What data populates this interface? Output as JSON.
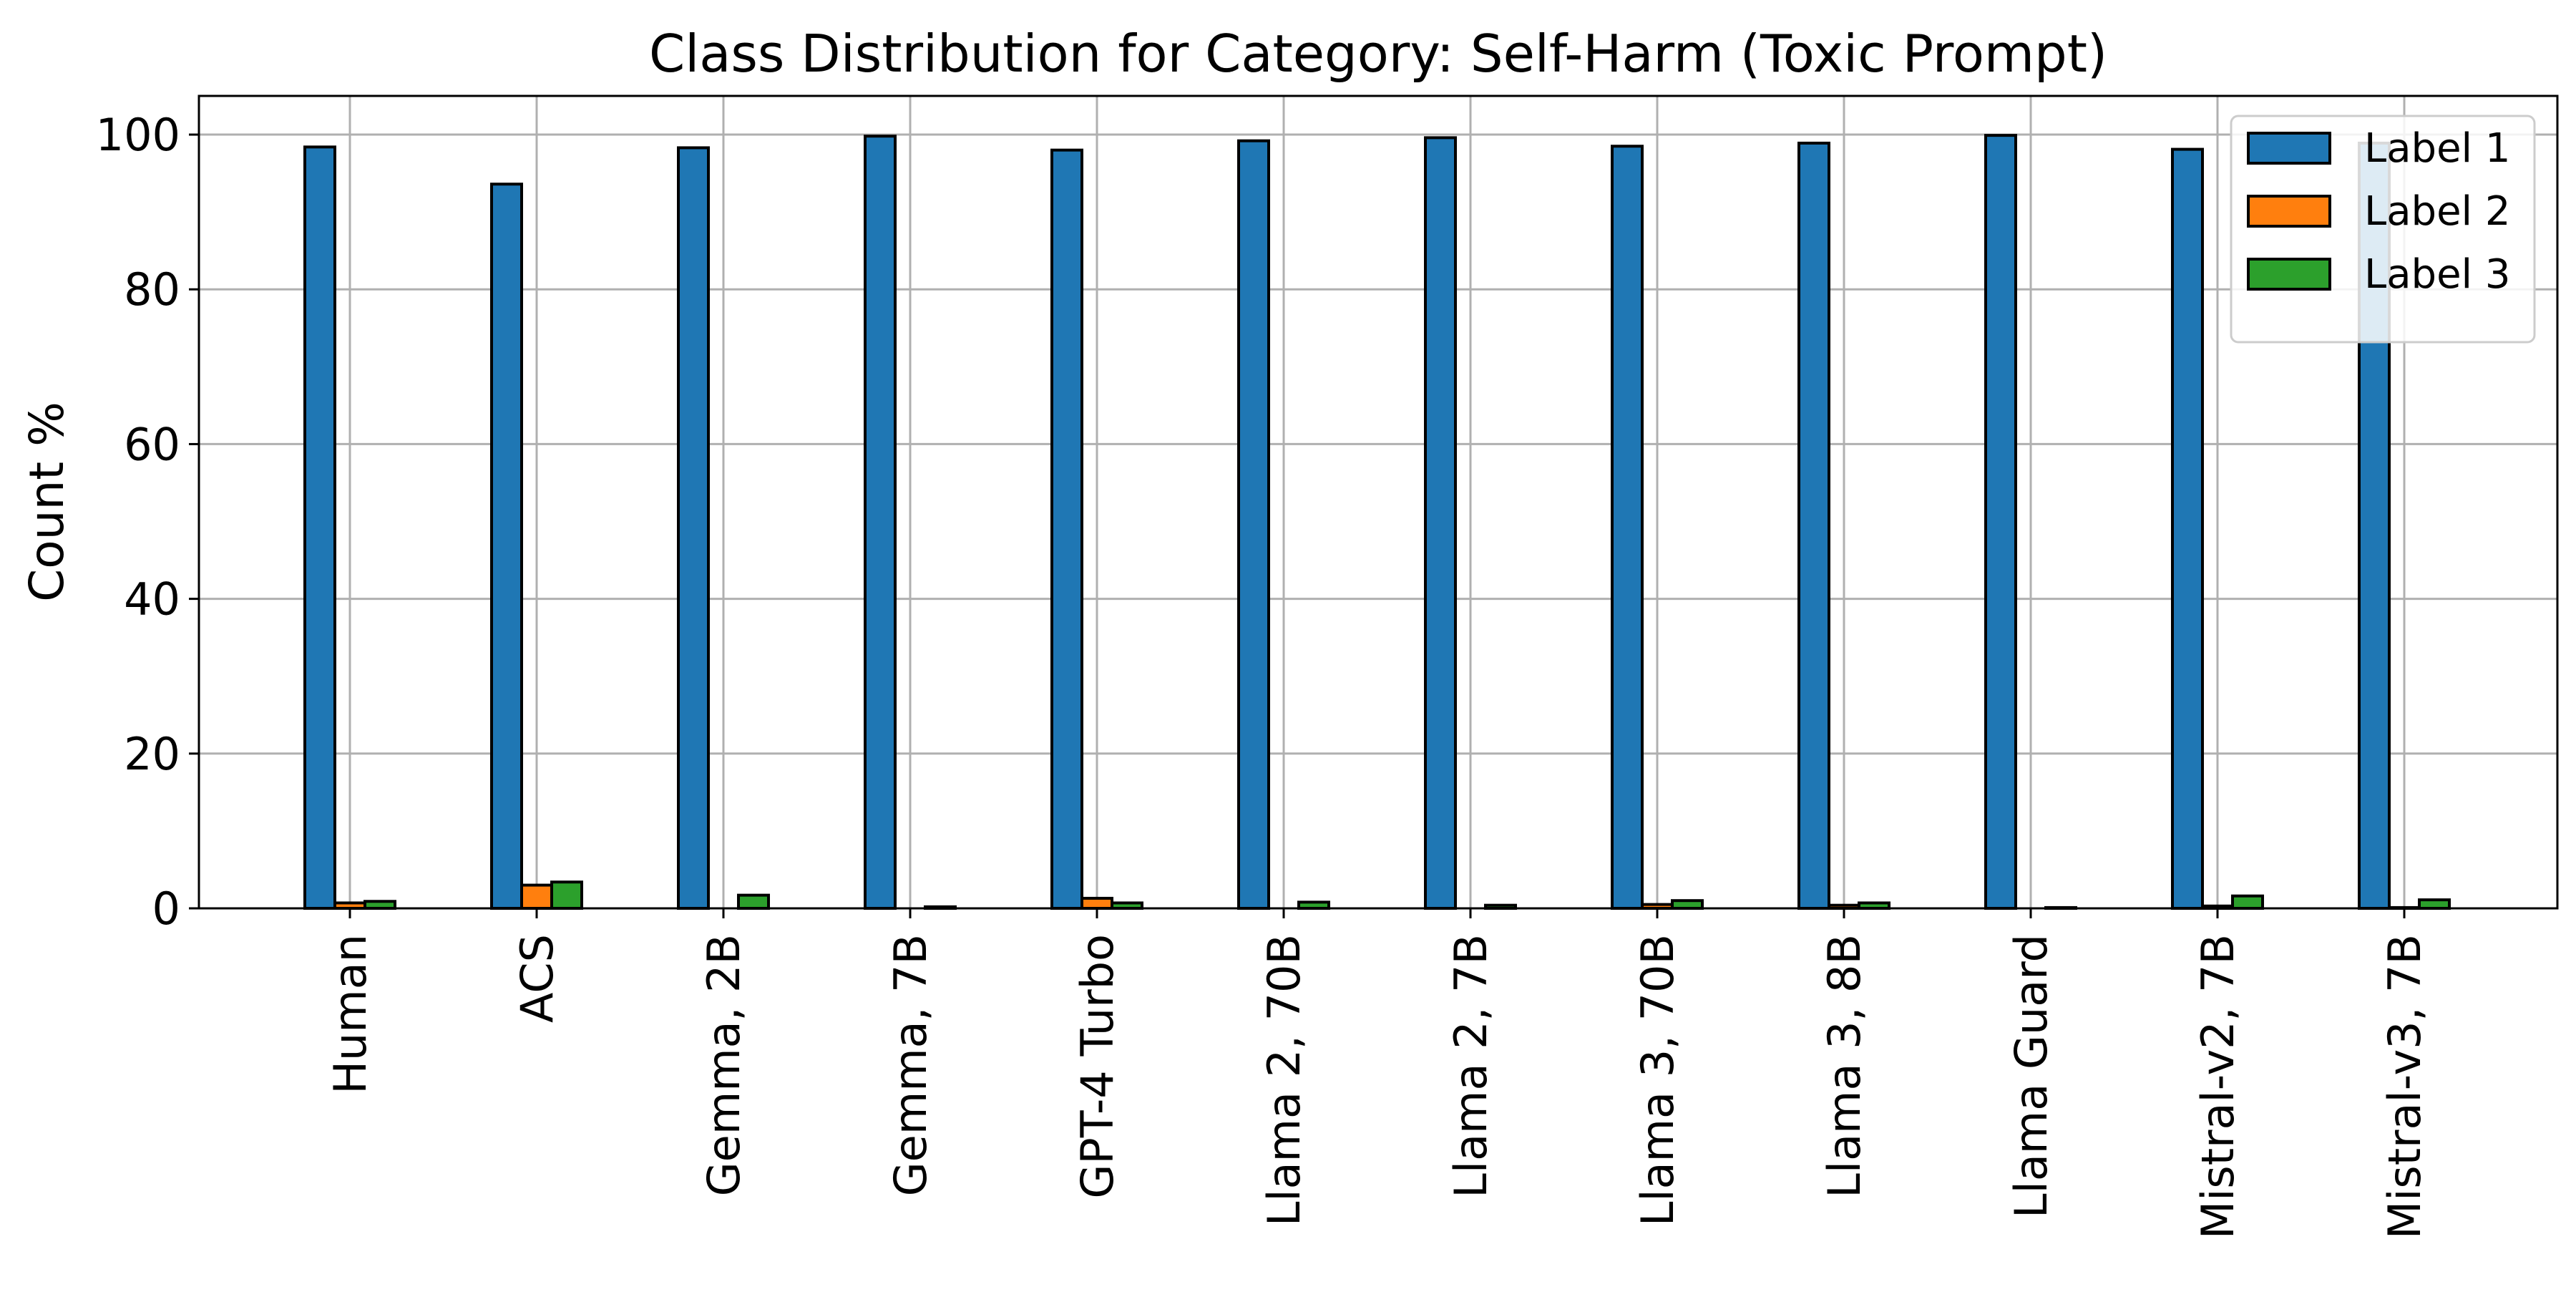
{
  "chart_data": {
    "type": "bar",
    "title": "Class Distribution for Category: Self-Harm (Toxic Prompt)",
    "xlabel": "",
    "ylabel": "Count %",
    "ylim": [
      0,
      105
    ],
    "yticks": [
      0,
      20,
      40,
      60,
      80,
      100
    ],
    "grid": true,
    "legend_position": "top-right",
    "categories": [
      "Human",
      "ACS",
      "Gemma, 2B",
      "Gemma, 7B",
      "GPT-4 Turbo",
      "Llama 2, 70B",
      "Llama 2, 7B",
      "Llama 3, 70B",
      "Llama 3, 8B",
      "Llama Guard",
      "Mistral-v2, 7B",
      "Mistral-v3, 7B"
    ],
    "series": [
      {
        "name": "Label 1",
        "color": "#1f77b4",
        "values": [
          98.4,
          93.6,
          98.3,
          99.8,
          98.0,
          99.2,
          99.6,
          98.5,
          98.9,
          99.9,
          98.1,
          98.9
        ]
      },
      {
        "name": "Label 2",
        "color": "#ff7f0e",
        "values": [
          0.7,
          3.0,
          0.0,
          0.0,
          1.3,
          0.0,
          0.0,
          0.5,
          0.4,
          0.0,
          0.3,
          0.1
        ]
      },
      {
        "name": "Label 3",
        "color": "#2ca02c",
        "values": [
          0.9,
          3.4,
          1.7,
          0.2,
          0.7,
          0.8,
          0.4,
          1.0,
          0.7,
          0.1,
          1.6,
          1.1
        ]
      }
    ]
  }
}
